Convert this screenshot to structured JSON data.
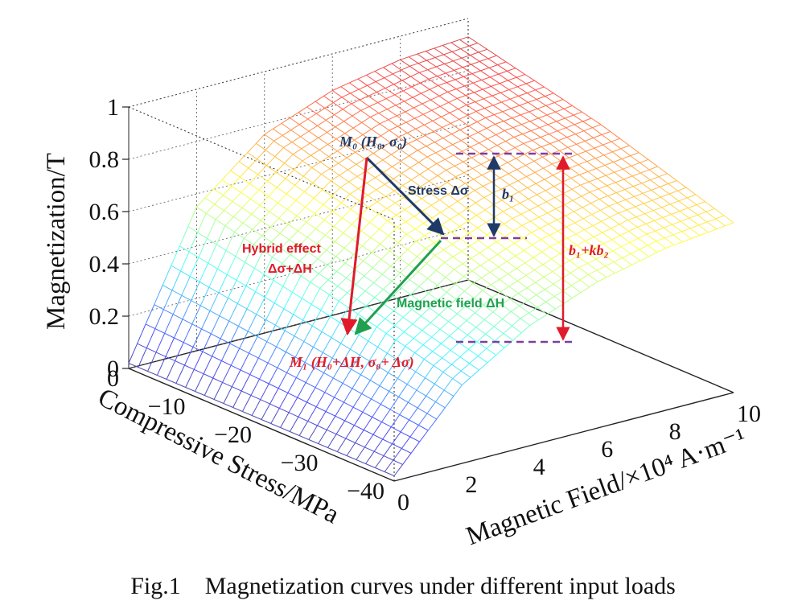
{
  "figure": {
    "caption": "Fig.1    Magnetization curves under different input loads"
  },
  "chart_data": {
    "type": "surface",
    "xlabel": "Magnetic Field/×10⁴ A·m⁻¹",
    "ylabel": "Compressive Stress/MPa",
    "zlabel": "Magnetization/T",
    "xlim": [
      0,
      10
    ],
    "ylim": [
      -40,
      0
    ],
    "zlim": [
      0,
      1
    ],
    "x_ticks": [
      "0",
      "2",
      "4",
      "6",
      "8",
      "10"
    ],
    "y_ticks": [
      "0",
      "−10",
      "−20",
      "−30",
      "−40"
    ],
    "z_ticks": [
      "0",
      "0.2",
      "0.4",
      "0.6",
      "0.8",
      "1"
    ],
    "grid": true,
    "colormap": "jet",
    "surface_samples": {
      "x": [
        0,
        2,
        4,
        6,
        8,
        10
      ],
      "stress": [
        0,
        -20,
        -40
      ],
      "magnetization": [
        [
          0.02,
          0.55,
          0.76,
          0.86,
          0.91,
          0.93
        ],
        [
          0.02,
          0.43,
          0.62,
          0.72,
          0.78,
          0.81
        ],
        [
          0.02,
          0.3,
          0.46,
          0.56,
          0.62,
          0.65
        ]
      ]
    },
    "annotations": {
      "m0": "M₀ (H₀, σ₀)",
      "m1": "M₁ (H₀+ΔH, σ₀+ Δσ)",
      "stress": "Stress Δσ",
      "field": "Magnetic  field  ΔH",
      "hybrid1": "Hybrid  effect",
      "hybrid2": "Δσ+ΔH",
      "b1": "b₁",
      "b1kb2": "b₁+kb₂"
    },
    "colors": {
      "stress_arrow": "#1f3a68",
      "field_arrow": "#21a050",
      "hybrid_arrow": "#e01b2a",
      "b1_arrow": "#1f3a68",
      "b1kb2_arrow": "#e01b2a",
      "dashed_lines": "#7b3fa0"
    }
  }
}
